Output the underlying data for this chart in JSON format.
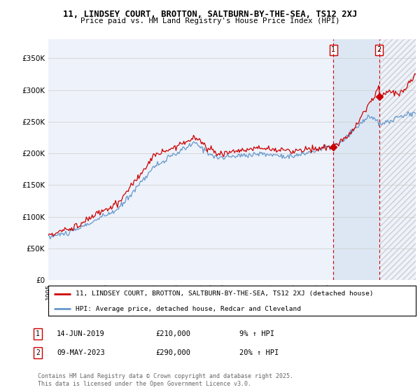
{
  "title_line1": "11, LINDSEY COURT, BROTTON, SALTBURN-BY-THE-SEA, TS12 2XJ",
  "title_line2": "Price paid vs. HM Land Registry's House Price Index (HPI)",
  "ylim": [
    0,
    380000
  ],
  "yticks": [
    0,
    50000,
    100000,
    150000,
    200000,
    250000,
    300000,
    350000
  ],
  "ytick_labels": [
    "£0",
    "£50K",
    "£100K",
    "£150K",
    "£200K",
    "£250K",
    "£300K",
    "£350K"
  ],
  "legend1_label": "11, LINDSEY COURT, BROTTON, SALTBURN-BY-THE-SEA, TS12 2XJ (detached house)",
  "legend2_label": "HPI: Average price, detached house, Redcar and Cleveland",
  "annotation1_date": "14-JUN-2019",
  "annotation1_price": "£210,000",
  "annotation1_hpi": "9% ↑ HPI",
  "annotation2_date": "09-MAY-2023",
  "annotation2_price": "£290,000",
  "annotation2_hpi": "20% ↑ HPI",
  "footer": "Contains HM Land Registry data © Crown copyright and database right 2025.\nThis data is licensed under the Open Government Licence v3.0.",
  "red_color": "#cc0000",
  "blue_color": "#6699cc",
  "bg_color": "#eef2fa",
  "sale1_year": 2019.45,
  "sale1_price": 210000,
  "sale2_year": 2023.37,
  "sale2_price": 290000,
  "xmin": 1995,
  "xmax": 2026.5
}
